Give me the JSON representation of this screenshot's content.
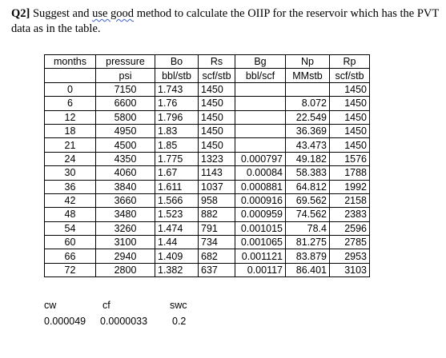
{
  "question": {
    "number": "Q2]",
    "text_part1": " Suggest and ",
    "spellcheck_phrase": "use good",
    "text_part2": " method to calculate the OIIP for the reservoir which has the PVT data as in the table."
  },
  "table": {
    "header_row1": [
      "months",
      "pressure",
      "Bo",
      "Rs",
      "Bg",
      "Np",
      "Rp"
    ],
    "header_row2": [
      "",
      "psi",
      "bbl/stb",
      "scf/stb",
      "bbl/scf",
      "MMstb",
      "scf/stb"
    ],
    "rows": [
      [
        "0",
        "7150",
        "1.743",
        "1450",
        "",
        "",
        "1450"
      ],
      [
        "6",
        "6600",
        "1.76",
        "1450",
        "",
        "8.072",
        "1450"
      ],
      [
        "12",
        "5800",
        "1.796",
        "1450",
        "",
        "22.549",
        "1450"
      ],
      [
        "18",
        "4950",
        "1.83",
        "1450",
        "",
        "36.369",
        "1450"
      ],
      [
        "21",
        "4500",
        "1.85",
        "1450",
        "",
        "43.473",
        "1450"
      ],
      [
        "24",
        "4350",
        "1.775",
        "1323",
        "0.000797",
        "49.182",
        "1576"
      ],
      [
        "30",
        "4060",
        "1.67",
        "1143",
        "0.00084",
        "58.383",
        "1788"
      ],
      [
        "36",
        "3840",
        "1.611",
        "1037",
        "0.000881",
        "64.812",
        "1992"
      ],
      [
        "42",
        "3660",
        "1.566",
        "958",
        "0.000916",
        "69.562",
        "2158"
      ],
      [
        "48",
        "3480",
        "1.523",
        "882",
        "0.000959",
        "74.562",
        "2383"
      ],
      [
        "54",
        "3260",
        "1.474",
        "791",
        "0.001015",
        "78.4",
        "2596"
      ],
      [
        "60",
        "3100",
        "1.44",
        "734",
        "0.001065",
        "81.275",
        "2785"
      ],
      [
        "66",
        "2940",
        "1.409",
        "682",
        "0.001121",
        "83.879",
        "2953"
      ],
      [
        "72",
        "2800",
        "1.382",
        "637",
        "0.00117",
        "86.401",
        "3103"
      ]
    ]
  },
  "constants": {
    "labels": [
      "cw",
      "cf",
      "swc"
    ],
    "values": [
      "0.000049",
      "0.0000033",
      "0.2"
    ]
  }
}
